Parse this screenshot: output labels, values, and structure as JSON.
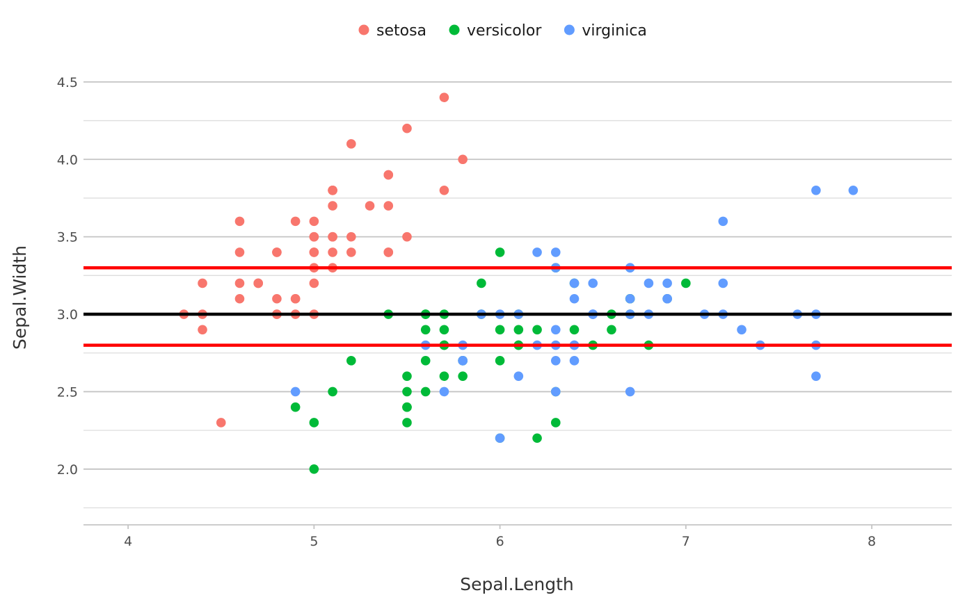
{
  "chart_data": {
    "type": "scatter",
    "title": "",
    "xlabel": "Sepal.Length",
    "ylabel": "Sepal.Width",
    "xlim": [
      3.76,
      8.43
    ],
    "ylim": [
      1.64,
      4.67
    ],
    "x_ticks": [
      "4",
      "5",
      "6",
      "7",
      "8"
    ],
    "y_ticks": [
      "2.0",
      "2.5",
      "3.0",
      "3.5",
      "4.0",
      "4.5"
    ],
    "grid": true,
    "legend_position": "top",
    "hlines": [
      {
        "y": 3.3,
        "color": "#ff0000"
      },
      {
        "y": 3.0,
        "color": "#000000"
      },
      {
        "y": 2.8,
        "color": "#ff0000"
      }
    ],
    "series": [
      {
        "name": "setosa",
        "color": "#F8766D",
        "points": [
          [
            5.1,
            3.5
          ],
          [
            4.9,
            3.0
          ],
          [
            4.7,
            3.2
          ],
          [
            4.6,
            3.1
          ],
          [
            5.0,
            3.6
          ],
          [
            5.4,
            3.9
          ],
          [
            4.6,
            3.4
          ],
          [
            5.0,
            3.4
          ],
          [
            4.4,
            2.9
          ],
          [
            4.9,
            3.1
          ],
          [
            5.4,
            3.7
          ],
          [
            4.8,
            3.4
          ],
          [
            4.8,
            3.0
          ],
          [
            4.3,
            3.0
          ],
          [
            5.8,
            4.0
          ],
          [
            5.7,
            4.4
          ],
          [
            5.4,
            3.9
          ],
          [
            5.1,
            3.5
          ],
          [
            5.7,
            3.8
          ],
          [
            5.1,
            3.8
          ],
          [
            5.4,
            3.4
          ],
          [
            5.1,
            3.7
          ],
          [
            4.6,
            3.6
          ],
          [
            5.1,
            3.3
          ],
          [
            4.8,
            3.4
          ],
          [
            5.0,
            3.0
          ],
          [
            5.0,
            3.4
          ],
          [
            5.2,
            3.5
          ],
          [
            5.2,
            3.4
          ],
          [
            4.7,
            3.2
          ],
          [
            4.8,
            3.1
          ],
          [
            5.4,
            3.4
          ],
          [
            5.2,
            4.1
          ],
          [
            5.5,
            4.2
          ],
          [
            4.9,
            3.1
          ],
          [
            5.0,
            3.2
          ],
          [
            5.5,
            3.5
          ],
          [
            4.9,
            3.6
          ],
          [
            4.4,
            3.0
          ],
          [
            5.1,
            3.4
          ],
          [
            5.0,
            3.5
          ],
          [
            4.5,
            2.3
          ],
          [
            4.4,
            3.2
          ],
          [
            5.0,
            3.5
          ],
          [
            5.1,
            3.8
          ],
          [
            4.8,
            3.0
          ],
          [
            5.1,
            3.8
          ],
          [
            4.6,
            3.2
          ],
          [
            5.3,
            3.7
          ],
          [
            5.0,
            3.3
          ]
        ]
      },
      {
        "name": "versicolor",
        "color": "#00BA38",
        "points": [
          [
            7.0,
            3.2
          ],
          [
            6.4,
            3.2
          ],
          [
            6.9,
            3.1
          ],
          [
            5.5,
            2.3
          ],
          [
            6.5,
            2.8
          ],
          [
            5.7,
            2.8
          ],
          [
            6.3,
            3.3
          ],
          [
            4.9,
            2.4
          ],
          [
            6.6,
            2.9
          ],
          [
            5.2,
            2.7
          ],
          [
            5.0,
            2.0
          ],
          [
            5.9,
            3.0
          ],
          [
            6.0,
            2.2
          ],
          [
            6.1,
            2.9
          ],
          [
            5.6,
            2.9
          ],
          [
            6.7,
            3.1
          ],
          [
            5.6,
            3.0
          ],
          [
            5.8,
            2.7
          ],
          [
            6.2,
            2.2
          ],
          [
            5.6,
            2.5
          ],
          [
            5.9,
            3.2
          ],
          [
            6.1,
            2.8
          ],
          [
            6.3,
            2.5
          ],
          [
            6.1,
            2.8
          ],
          [
            6.4,
            2.9
          ],
          [
            6.6,
            3.0
          ],
          [
            6.8,
            2.8
          ],
          [
            6.7,
            3.0
          ],
          [
            6.0,
            2.9
          ],
          [
            5.7,
            2.6
          ],
          [
            5.5,
            2.4
          ],
          [
            5.5,
            2.4
          ],
          [
            5.8,
            2.7
          ],
          [
            6.0,
            2.7
          ],
          [
            5.4,
            3.0
          ],
          [
            6.0,
            3.4
          ],
          [
            6.7,
            3.1
          ],
          [
            6.3,
            2.3
          ],
          [
            5.6,
            3.0
          ],
          [
            5.5,
            2.5
          ],
          [
            5.5,
            2.6
          ],
          [
            6.1,
            3.0
          ],
          [
            5.8,
            2.6
          ],
          [
            5.0,
            2.3
          ],
          [
            5.6,
            2.7
          ],
          [
            5.7,
            3.0
          ],
          [
            5.7,
            2.9
          ],
          [
            6.2,
            2.9
          ],
          [
            5.1,
            2.5
          ],
          [
            5.7,
            2.8
          ]
        ]
      },
      {
        "name": "virginica",
        "color": "#619CFF",
        "points": [
          [
            6.3,
            3.3
          ],
          [
            5.8,
            2.7
          ],
          [
            7.1,
            3.0
          ],
          [
            6.3,
            2.9
          ],
          [
            6.5,
            3.0
          ],
          [
            7.6,
            3.0
          ],
          [
            4.9,
            2.5
          ],
          [
            7.3,
            2.9
          ],
          [
            6.7,
            2.5
          ],
          [
            7.2,
            3.6
          ],
          [
            6.5,
            3.2
          ],
          [
            6.4,
            2.7
          ],
          [
            6.8,
            3.0
          ],
          [
            5.7,
            2.5
          ],
          [
            5.8,
            2.8
          ],
          [
            6.4,
            3.2
          ],
          [
            6.5,
            3.0
          ],
          [
            7.7,
            3.8
          ],
          [
            7.7,
            2.6
          ],
          [
            6.0,
            2.2
          ],
          [
            6.9,
            3.2
          ],
          [
            5.6,
            2.8
          ],
          [
            7.7,
            2.8
          ],
          [
            6.3,
            2.7
          ],
          [
            6.7,
            3.3
          ],
          [
            7.2,
            3.2
          ],
          [
            6.2,
            2.8
          ],
          [
            6.1,
            3.0
          ],
          [
            6.4,
            2.8
          ],
          [
            7.2,
            3.0
          ],
          [
            7.4,
            2.8
          ],
          [
            7.9,
            3.8
          ],
          [
            6.4,
            2.8
          ],
          [
            6.3,
            2.8
          ],
          [
            6.1,
            2.6
          ],
          [
            7.7,
            3.0
          ],
          [
            6.3,
            3.4
          ],
          [
            6.4,
            3.1
          ],
          [
            6.0,
            3.0
          ],
          [
            6.9,
            3.1
          ],
          [
            6.7,
            3.1
          ],
          [
            6.9,
            3.1
          ],
          [
            5.8,
            2.7
          ],
          [
            6.8,
            3.2
          ],
          [
            6.7,
            3.3
          ],
          [
            6.7,
            3.0
          ],
          [
            6.3,
            2.5
          ],
          [
            6.5,
            3.0
          ],
          [
            6.2,
            3.4
          ],
          [
            5.9,
            3.0
          ]
        ]
      }
    ]
  }
}
